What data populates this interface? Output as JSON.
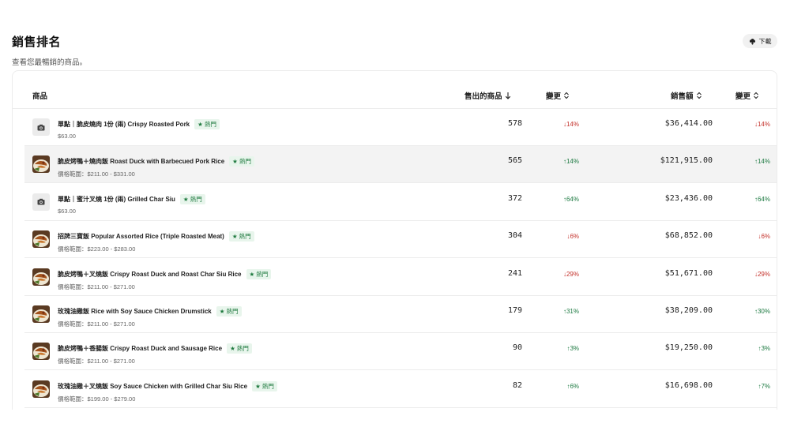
{
  "header": {
    "title": "銷售排名",
    "subtitle": "查看您最暢銷的商品。"
  },
  "toolbar": {
    "download_label": "下載",
    "download_icon": "cloud-download-icon"
  },
  "table": {
    "columns": {
      "product": "商品",
      "qty": "售出的商品",
      "qty_change": "變更",
      "revenue": "銷售額",
      "revenue_change": "變更"
    },
    "rows": [
      {
        "name": "單點｜脆皮燒肉 1份 (兩) Crispy Roasted Pork",
        "badge": "★ 熱門",
        "price": "$63.00",
        "qty": "578",
        "qty_change": "↓14%",
        "qty_dir": "down",
        "revenue": "$36,414.00",
        "rev_change": "↓14%",
        "rev_dir": "down",
        "thumb": "placeholder"
      },
      {
        "name": "脆皮烤鴨＋燒肉飯 Roast Duck with Barbecued Pork Rice",
        "badge": "★ 熱門",
        "price": "價格範圍：$211.00 - $331.00",
        "qty": "565",
        "qty_change": "↑14%",
        "qty_dir": "up",
        "revenue": "$121,915.00",
        "rev_change": "↑14%",
        "rev_dir": "up",
        "thumb": "food"
      },
      {
        "name": "單點｜蜜汁叉燒 1份 (兩) Grilled Char Siu",
        "badge": "★ 熱門",
        "price": "$63.00",
        "qty": "372",
        "qty_change": "↑64%",
        "qty_dir": "up",
        "revenue": "$23,436.00",
        "rev_change": "↑64%",
        "rev_dir": "up",
        "thumb": "placeholder"
      },
      {
        "name": "招牌三寶飯 Popular Assorted Rice (Triple Roasted Meat)",
        "badge": "★ 熱門",
        "price": "價格範圍：$223.00 - $283.00",
        "qty": "304",
        "qty_change": "↓6%",
        "qty_dir": "down",
        "revenue": "$68,852.00",
        "rev_change": "↓6%",
        "rev_dir": "down",
        "thumb": "food"
      },
      {
        "name": "脆皮烤鴨＋叉燒飯 Crispy Roast Duck and Roast Char Siu Rice",
        "badge": "★ 熱門",
        "price": "價格範圍：$211.00 - $271.00",
        "qty": "241",
        "qty_change": "↓29%",
        "qty_dir": "down",
        "revenue": "$51,671.00",
        "rev_change": "↓29%",
        "rev_dir": "down",
        "thumb": "food"
      },
      {
        "name": "玫瑰油雞飯 Rice with Soy Sauce Chicken Drumstick",
        "badge": "★ 熱門",
        "price": "價格範圍：$211.00 - $271.00",
        "qty": "179",
        "qty_change": "↑31%",
        "qty_dir": "up",
        "revenue": "$38,209.00",
        "rev_change": "↑30%",
        "rev_dir": "up",
        "thumb": "food"
      },
      {
        "name": "脆皮烤鴨＋香腸飯 Crispy Roast Duck and Sausage Rice",
        "badge": "★ 熱門",
        "price": "價格範圍：$211.00 - $271.00",
        "qty": "90",
        "qty_change": "↑3%",
        "qty_dir": "up",
        "revenue": "$19,250.00",
        "rev_change": "↑3%",
        "rev_dir": "up",
        "thumb": "food"
      },
      {
        "name": "玫瑰油雞＋叉燒飯 Soy Sauce Chicken with Grilled Char Siu Rice",
        "badge": "★ 熱門",
        "price": "價格範圍：$199.00 - $279.00",
        "qty": "82",
        "qty_change": "↑6%",
        "qty_dir": "up",
        "revenue": "$16,698.00",
        "rev_change": "↑7%",
        "rev_dir": "up",
        "thumb": "food"
      }
    ]
  }
}
